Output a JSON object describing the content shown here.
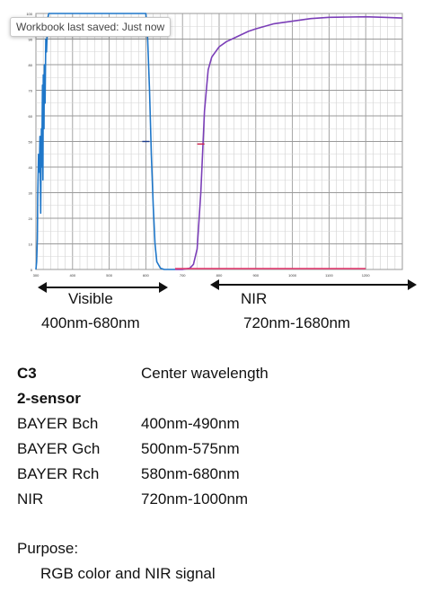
{
  "tooltip": {
    "text": "Workbook last saved: Just now"
  },
  "chart_data": {
    "type": "line",
    "title": "",
    "xlabel": "",
    "ylabel": "",
    "xlim": [
      300,
      1300
    ],
    "ylim": [
      0,
      100
    ],
    "grid": true,
    "x_ticks": [
      "300",
      "400",
      "500",
      "600",
      "700",
      "800",
      "900",
      "1000",
      "1100",
      "1200"
    ],
    "y_ticks": [
      "0",
      "10",
      "20",
      "30",
      "40",
      "50",
      "60",
      "70",
      "80",
      "90",
      "100"
    ],
    "series": [
      {
        "color": "#1f77c9",
        "x": [
          300,
          302,
          304,
          305,
          307,
          309,
          311,
          313,
          315,
          316,
          318,
          319,
          320,
          322,
          323,
          325,
          327,
          329,
          332,
          335,
          340,
          600,
          605,
          610,
          615,
          620,
          625,
          630,
          640,
          650,
          660,
          680
        ],
        "y": [
          0,
          3,
          12,
          28,
          45,
          38,
          52,
          22,
          55,
          40,
          72,
          35,
          76,
          55,
          80,
          65,
          90,
          85,
          98,
          100,
          100,
          100,
          90,
          70,
          45,
          25,
          10,
          3,
          0.5,
          0,
          0,
          0
        ]
      },
      {
        "color": "#7b3fb8",
        "x": [
          680,
          700,
          720,
          730,
          740,
          750,
          760,
          770,
          780,
          790,
          800,
          820,
          850,
          880,
          900,
          950,
          1000,
          1050,
          1100,
          1150,
          1200,
          1250,
          1300
        ],
        "y": [
          0,
          0,
          0.5,
          2,
          8,
          30,
          62,
          78,
          83,
          85,
          87,
          89,
          91,
          93,
          94,
          96,
          97,
          98,
          98.5,
          98.6,
          98.7,
          98.5,
          98.2
        ]
      },
      {
        "color": "#e03a6e",
        "x": [
          680,
          800,
          1000,
          1200
        ],
        "y": [
          0.3,
          0.3,
          0.3,
          0.3
        ]
      }
    ]
  },
  "bands": {
    "visible_label": "Visible",
    "visible_range": "400nm-680nm",
    "nir_label": "NIR",
    "nir_range": "720nm-1680nm"
  },
  "specs": {
    "heading_left": "C3",
    "heading_right": "Center wavelength",
    "subheading": "2-sensor",
    "rows": [
      {
        "name": "BAYER Bch",
        "value": "400nm-490nm"
      },
      {
        "name": "BAYER Gch",
        "value": "500nm-575nm"
      },
      {
        "name": "BAYER Rch",
        "value": "580nm-680nm"
      },
      {
        "name": "NIR",
        "value": "720nm-1000nm"
      }
    ]
  },
  "purpose": {
    "label": "Purpose:",
    "text": "RGB color and NIR signal"
  }
}
